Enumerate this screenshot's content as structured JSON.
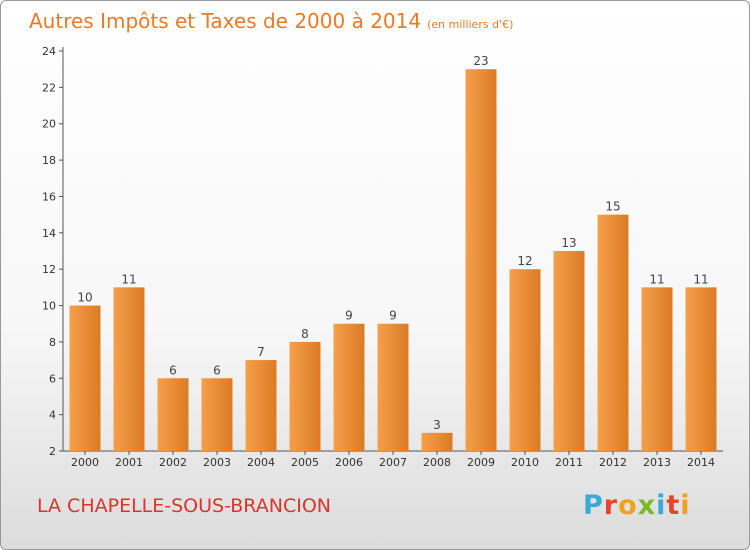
{
  "header": {
    "title": "Autres Impôts et Taxes de 2000 à 2014",
    "subtitle": "(en milliers d'€)"
  },
  "footer": {
    "commune": "LA CHAPELLE-SOUS-BRANCION",
    "logo": "Proxiti"
  },
  "colors": {
    "bar_light": "#f5a04c",
    "bar_dark": "#dd7a24",
    "title": "#ea7a26",
    "commune": "#e0312c"
  },
  "chart_data": {
    "type": "bar",
    "title": "Autres Impôts et Taxes de 2000 à 2014",
    "subtitle": "(en milliers d'€)",
    "xlabel": "",
    "ylabel": "",
    "categories": [
      "2000",
      "2001",
      "2002",
      "2003",
      "2004",
      "2005",
      "2006",
      "2007",
      "2008",
      "2009",
      "2010",
      "2011",
      "2012",
      "2013",
      "2014"
    ],
    "values": [
      10,
      11,
      6,
      6,
      7,
      8,
      9,
      9,
      3,
      23,
      12,
      13,
      15,
      11,
      11
    ],
    "ylim": [
      2,
      24
    ],
    "yticks": [
      2,
      4,
      6,
      8,
      10,
      12,
      14,
      16,
      18,
      20,
      22,
      24
    ],
    "grid": false,
    "legend": "none"
  }
}
